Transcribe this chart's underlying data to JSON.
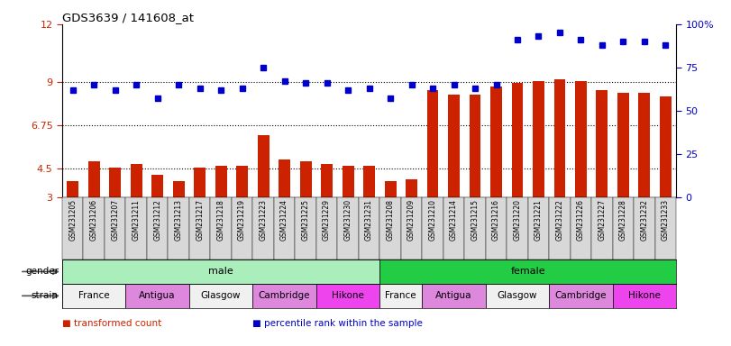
{
  "title": "GDS3639 / 141608_at",
  "samples": [
    "GSM231205",
    "GSM231206",
    "GSM231207",
    "GSM231211",
    "GSM231212",
    "GSM231213",
    "GSM231217",
    "GSM231218",
    "GSM231219",
    "GSM231223",
    "GSM231224",
    "GSM231225",
    "GSM231229",
    "GSM231230",
    "GSM231231",
    "GSM231208",
    "GSM231209",
    "GSM231210",
    "GSM231214",
    "GSM231215",
    "GSM231216",
    "GSM231220",
    "GSM231221",
    "GSM231222",
    "GSM231226",
    "GSM231227",
    "GSM231228",
    "GSM231232",
    "GSM231233"
  ],
  "bar_values": [
    3.85,
    4.85,
    4.55,
    4.75,
    4.15,
    3.85,
    4.55,
    4.65,
    4.65,
    6.25,
    4.95,
    4.85,
    4.75,
    4.65,
    4.65,
    3.85,
    3.95,
    8.55,
    8.35,
    8.35,
    8.75,
    8.95,
    9.05,
    9.15,
    9.05,
    8.55,
    8.45,
    8.45,
    8.25
  ],
  "dot_values_pct": [
    62,
    65,
    62,
    65,
    57,
    65,
    63,
    62,
    63,
    75,
    67,
    66,
    66,
    62,
    63,
    57,
    65,
    63,
    65,
    63,
    65,
    91,
    93,
    95,
    91,
    88,
    90,
    90,
    88
  ],
  "gender_groups": [
    {
      "label": "male",
      "start": 0,
      "end": 15,
      "color": "#aaeebb"
    },
    {
      "label": "female",
      "start": 15,
      "end": 29,
      "color": "#22cc44"
    }
  ],
  "strain_groups": [
    {
      "label": "France",
      "start": 0,
      "end": 3,
      "color": "#f0f0f0"
    },
    {
      "label": "Antigua",
      "start": 3,
      "end": 6,
      "color": "#dd88dd"
    },
    {
      "label": "Glasgow",
      "start": 6,
      "end": 9,
      "color": "#f0f0f0"
    },
    {
      "label": "Cambridge",
      "start": 9,
      "end": 12,
      "color": "#dd88dd"
    },
    {
      "label": "Hikone",
      "start": 12,
      "end": 15,
      "color": "#ee44ee"
    },
    {
      "label": "France",
      "start": 15,
      "end": 17,
      "color": "#f0f0f0"
    },
    {
      "label": "Antigua",
      "start": 17,
      "end": 20,
      "color": "#dd88dd"
    },
    {
      "label": "Glasgow",
      "start": 20,
      "end": 23,
      "color": "#f0f0f0"
    },
    {
      "label": "Cambridge",
      "start": 23,
      "end": 26,
      "color": "#dd88dd"
    },
    {
      "label": "Hikone",
      "start": 26,
      "end": 29,
      "color": "#ee44ee"
    }
  ],
  "ylim_left": [
    3,
    12
  ],
  "yticks_left": [
    3,
    4.5,
    6.75,
    9,
    12
  ],
  "ytick_labels_left": [
    "3",
    "4.5",
    "6.75",
    "9",
    "12"
  ],
  "ylim_right": [
    0,
    100
  ],
  "yticks_right": [
    0,
    25,
    50,
    75,
    100
  ],
  "ytick_labels_right": [
    "0",
    "25",
    "50",
    "75",
    "100%"
  ],
  "hlines": [
    4.5,
    6.75,
    9
  ],
  "bar_color": "#cc2200",
  "dot_color": "#0000cc",
  "bar_width": 0.55,
  "legend_items": [
    {
      "color": "#cc2200",
      "label": "transformed count"
    },
    {
      "color": "#0000cc",
      "label": "percentile rank within the sample"
    }
  ],
  "tick_bg_color": "#d8d8d8"
}
